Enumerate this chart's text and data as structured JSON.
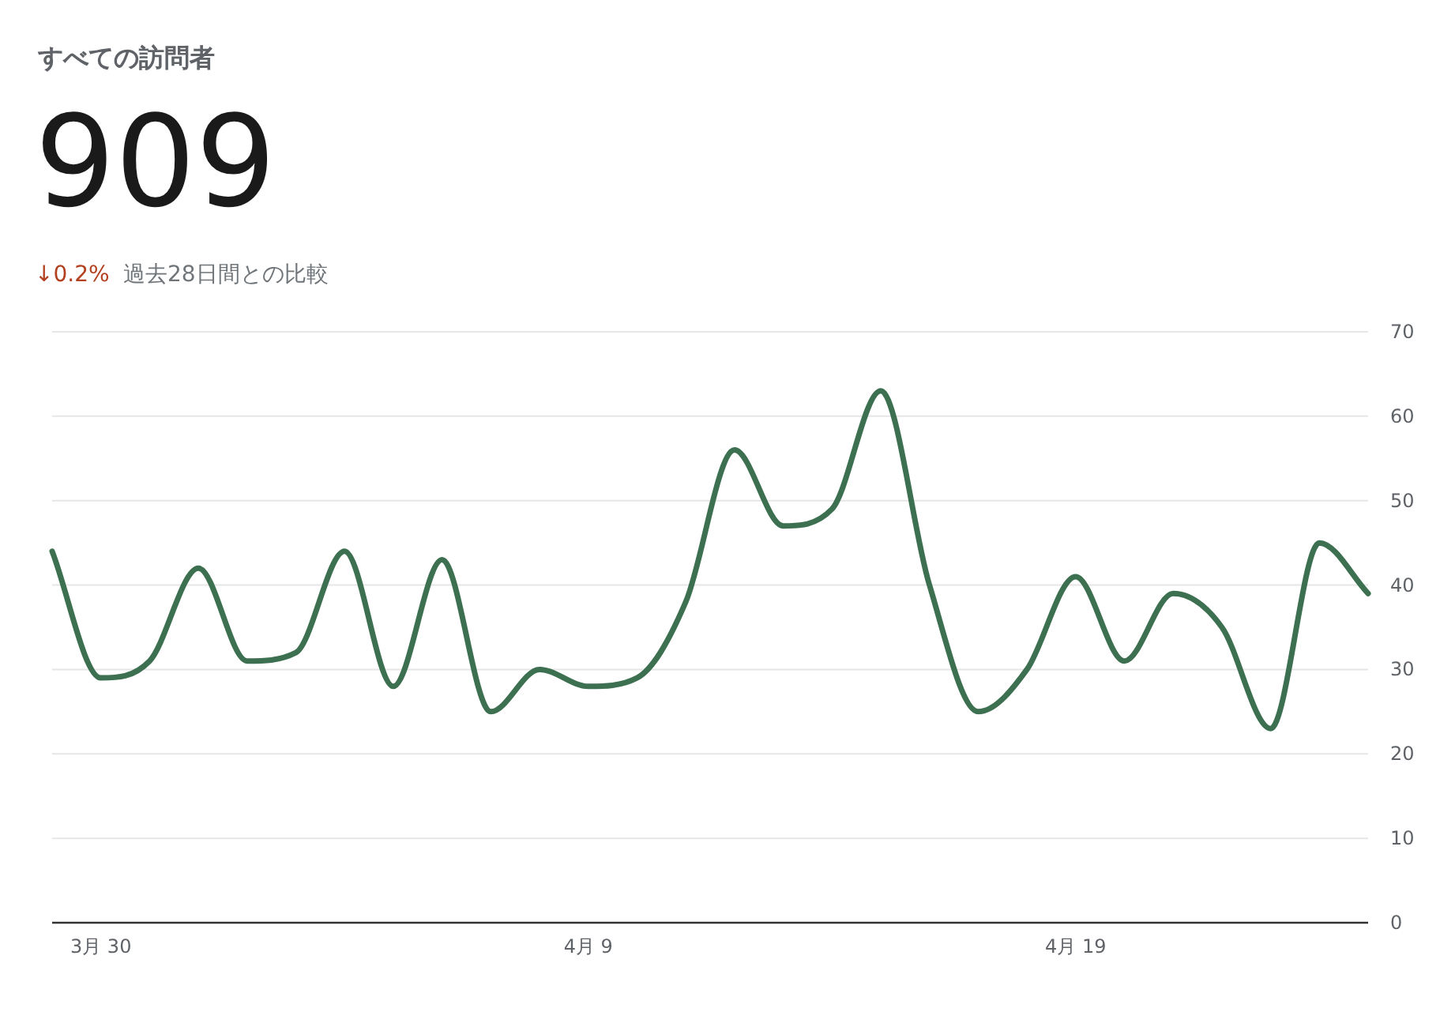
{
  "chart_data": {
    "type": "line",
    "title": "すべての訪問者",
    "annotations": [
      "909",
      "↓0.2%",
      "過去28日間との比較"
    ],
    "x": [
      "--03-29",
      "--03-30",
      "--03-31",
      "--04-01",
      "--04-02",
      "--04-03",
      "--04-04",
      "--04-05",
      "--04-06",
      "--04-07",
      "--04-08",
      "--04-09",
      "--04-10",
      "--04-11",
      "--04-12",
      "--04-13",
      "--04-14",
      "--04-15",
      "--04-16",
      "--04-17",
      "--04-18",
      "--04-19",
      "--04-20",
      "--04-21",
      "--04-22",
      "--04-23",
      "--04-24",
      "--04-25"
    ],
    "series": [
      {
        "color": "#3d7050",
        "values": [
          44,
          29,
          31,
          42,
          31,
          32,
          44,
          28,
          43,
          25,
          30,
          28,
          29,
          38,
          56,
          47,
          49,
          63,
          40,
          25,
          30,
          41,
          31,
          39,
          35,
          23,
          45,
          39
        ]
      }
    ],
    "xlim": [
      "--03-29",
      "--04-25"
    ],
    "xticks": [
      {
        "value": "--03-30",
        "label": "3月 30"
      },
      {
        "value": "--04-09",
        "label": "4月 9"
      },
      {
        "value": "--04-19",
        "label": "4月 19"
      }
    ],
    "ylim": [
      0,
      70
    ],
    "yticks": [
      0,
      10,
      20,
      30,
      40,
      50,
      60,
      70
    ],
    "grid": "y",
    "marker": "none",
    "line_style": "solid"
  }
}
